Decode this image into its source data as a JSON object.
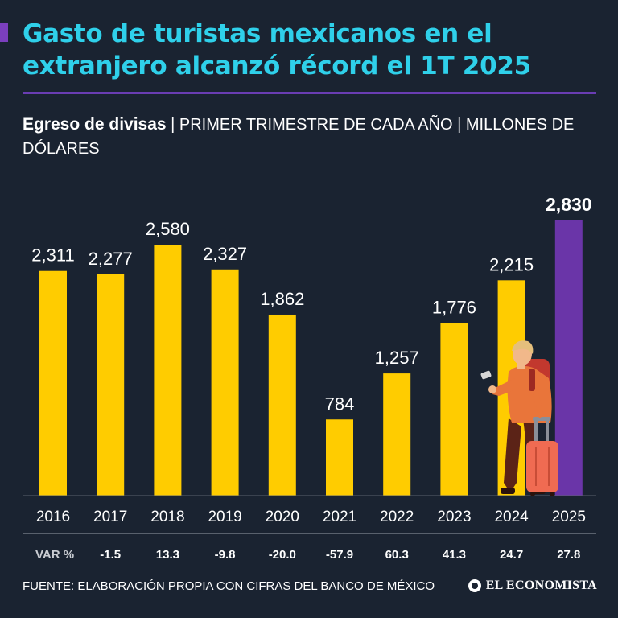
{
  "header": {
    "title": "Gasto de turistas mexicanos en el extranjero alcanzó récord el 1T 2025",
    "subtitle_bold": "Egreso de divisas",
    "subtitle_rest": " | PRIMER TRIMESTRE DE CADA AÑO | MILLONES DE DÓLARES"
  },
  "chart_data": {
    "type": "bar",
    "title": "Egreso de divisas",
    "ylabel": "Millones de dólares",
    "categories": [
      "2016",
      "2017",
      "2018",
      "2019",
      "2020",
      "2021",
      "2022",
      "2023",
      "2024",
      "2025"
    ],
    "values": [
      2311,
      2277,
      2580,
      2327,
      1862,
      784,
      1257,
      1776,
      2215,
      2830
    ],
    "value_labels": [
      "2,311",
      "2,277",
      "2,580",
      "2,327",
      "1,862",
      "784",
      "1,257",
      "1,776",
      "2,215",
      "2,830"
    ],
    "var_label": "VAR %",
    "var_pct": [
      "",
      "-1.5",
      "13.3",
      "-9.8",
      "-20.0",
      "-57.9",
      "60.3",
      "41.3",
      "24.7",
      "27.8"
    ],
    "ylim": [
      0,
      2830
    ],
    "bar_color": "#ffcc00",
    "highlight_color": "#6a35a8",
    "highlight_index": 9
  },
  "footer": {
    "source": "FUENTE: ELABORACIÓN PROPIA CON CIFRAS DEL BANCO DE MÉXICO",
    "logo": "EL ECONOMISTA"
  }
}
